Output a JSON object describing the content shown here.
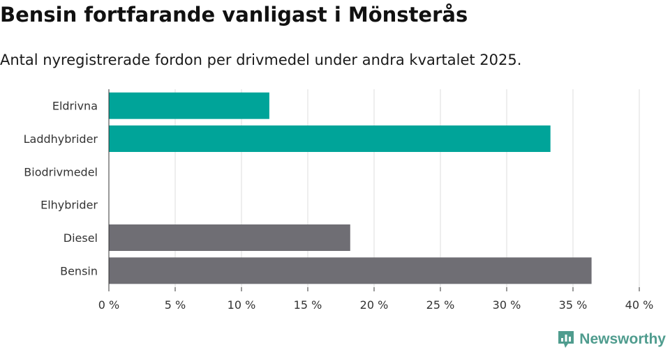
{
  "chart_data": {
    "type": "bar",
    "orientation": "horizontal",
    "title": "Bensin fortfarande vanligast i Mönsterås",
    "subtitle": "Antal nyregistrerade fordon per drivmedel under andra kvartalet 2025.",
    "categories": [
      "Eldrivna",
      "Laddhybrider",
      "Biodrivmedel",
      "Elhybrider",
      "Diesel",
      "Bensin"
    ],
    "values": [
      12.1,
      33.3,
      0,
      0,
      18.2,
      36.4
    ],
    "colors": [
      "#00a499",
      "#00a499",
      "#00a499",
      "#00a499",
      "#6f6e74",
      "#6f6e74"
    ],
    "xlim": [
      0,
      40
    ],
    "xticks": [
      0,
      5,
      10,
      15,
      20,
      25,
      30,
      35,
      40
    ],
    "xtick_labels": [
      "0 %",
      "5 %",
      "10 %",
      "15 %",
      "20 %",
      "25 %",
      "30 %",
      "35 %",
      "40 %"
    ],
    "grid": true
  },
  "brand": {
    "name": "Newsworthy",
    "icon": "bar-chart-logo-icon",
    "color": "#4f9c8e"
  }
}
